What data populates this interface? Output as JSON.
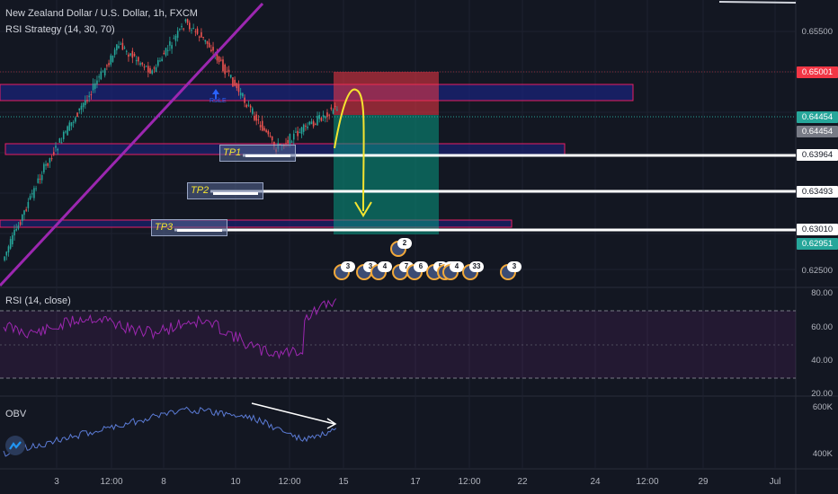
{
  "header": {
    "symbol": "New Zealand Dollar / U.S. Dollar, 1h, FXCM",
    "strategy": "RSI Strategy (14, 30, 70)",
    "rsi_label": "RSI (14, close)",
    "obv_label": "OBV"
  },
  "price_axis": {
    "ticks": [
      "0.65500",
      "0.62500"
    ],
    "labels": [
      {
        "text": "0.65001",
        "color": "#f23645"
      },
      {
        "text": "0.64454",
        "color": "#26a69a"
      },
      {
        "text": "0.64454",
        "color": "#787b86"
      },
      {
        "text": "0.63964",
        "color": "#ffffff"
      },
      {
        "text": "0.63493",
        "color": "#ffffff"
      },
      {
        "text": "0.63010",
        "color": "#ffffff"
      },
      {
        "text": "0.62951",
        "color": "#26a69a"
      }
    ]
  },
  "rsi_axis": {
    "ticks": [
      "80.00",
      "60.00",
      "40.00",
      "20.00"
    ]
  },
  "obv_axis": {
    "ticks": [
      "600K",
      "400K"
    ]
  },
  "time_axis": {
    "labels": [
      "3",
      "12:00",
      "8",
      "10",
      "12:00",
      "15",
      "17",
      "12:00",
      "22",
      "24",
      "12:00",
      "29",
      "Jul"
    ]
  },
  "targets": [
    {
      "label": "TP1"
    },
    {
      "label": "TP2"
    },
    {
      "label": "TP3"
    }
  ],
  "signal_label": "RsiLE",
  "events": [
    {
      "badge": "2"
    },
    {
      "badge": "3"
    },
    {
      "badge": "3"
    },
    {
      "badge": "4"
    },
    {
      "badge": "7"
    },
    {
      "badge": "6"
    },
    {
      "badge": "5"
    },
    {
      "badge": "1"
    },
    {
      "badge": "4"
    },
    {
      "badge": "33"
    },
    {
      "badge": "3"
    }
  ],
  "colors": {
    "background": "#131722",
    "bull": "#26a69a",
    "bear": "#ef5350",
    "zone_fill": "#1a237e",
    "zone_border": "#e91e63",
    "trend": "#9c27b0",
    "rsi_line": "#9c27b0",
    "obv_line": "#5b7bd5",
    "arrow": "#f5e430"
  }
}
